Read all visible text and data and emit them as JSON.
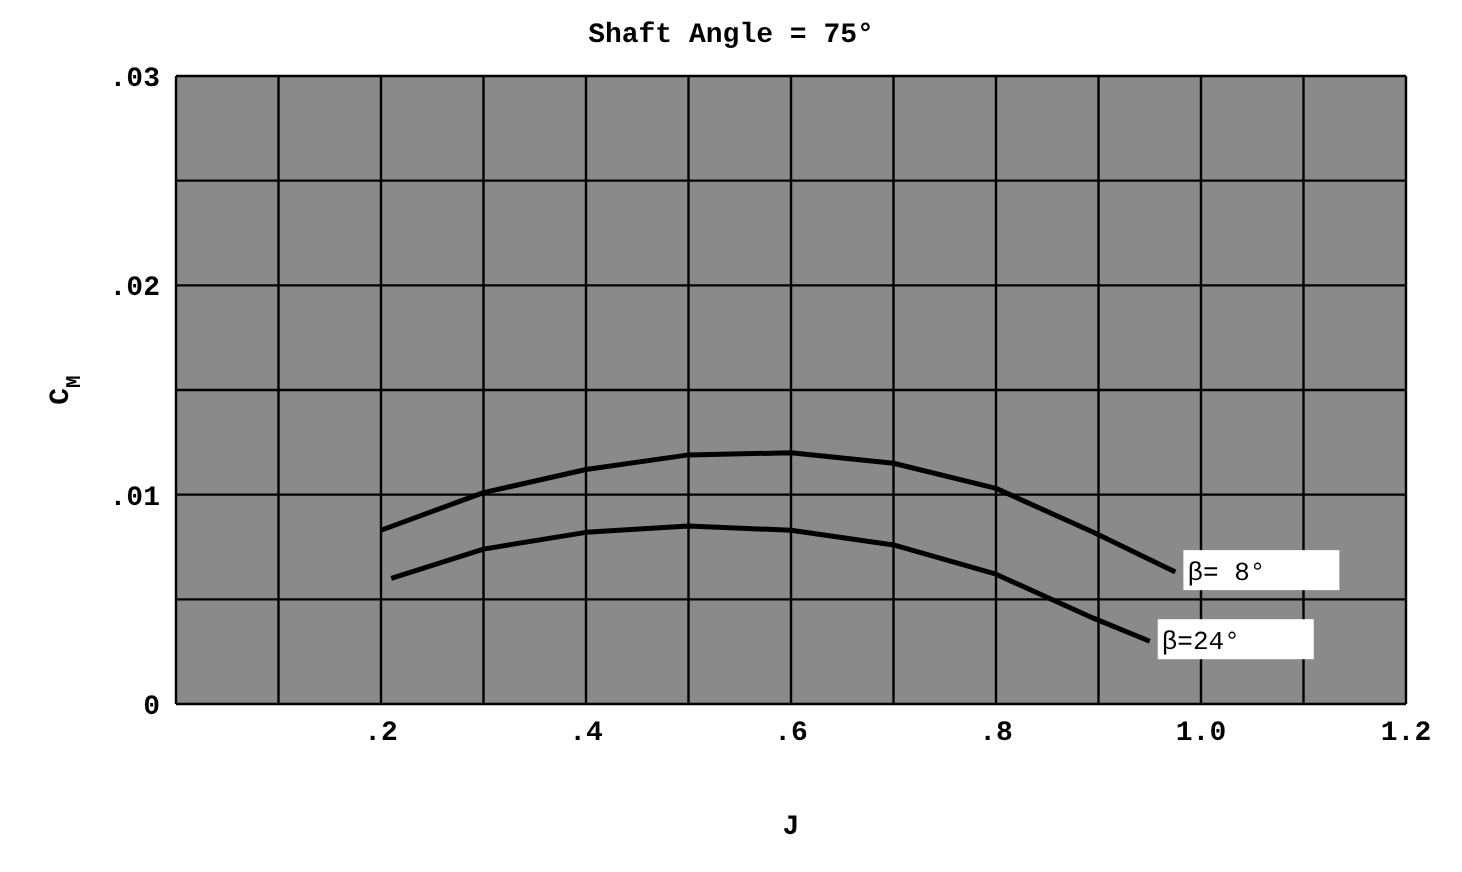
{
  "chart_data": {
    "type": "line",
    "title": "Shaft Angle = 75°",
    "xlabel": "J",
    "ylabel": "C$_{M}$",
    "xlim": [
      0,
      1.2
    ],
    "xticks": [
      {
        "value": 0,
        "label": null
      },
      {
        "value": 0.1,
        "label": null
      },
      {
        "value": 0.2,
        "label": ".2"
      },
      {
        "value": 0.3,
        "label": null
      },
      {
        "value": 0.4,
        "label": ".4"
      },
      {
        "value": 0.5,
        "label": null
      },
      {
        "value": 0.6,
        "label": ".6"
      },
      {
        "value": 0.7,
        "label": null
      },
      {
        "value": 0.8,
        "label": ".8"
      },
      {
        "value": 0.9,
        "label": null
      },
      {
        "value": 1.0,
        "label": "1.0"
      },
      {
        "value": 1.1,
        "label": null
      },
      {
        "value": 1.2,
        "label": "1.2"
      }
    ],
    "ylim": [
      0,
      0.03
    ],
    "yticks": [
      {
        "value": 0,
        "label": "0"
      },
      {
        "value": 0.005,
        "label": null
      },
      {
        "value": 0.01,
        "label": ".01"
      },
      {
        "value": 0.015,
        "label": null
      },
      {
        "value": 0.02,
        "label": ".02"
      },
      {
        "value": 0.025,
        "label": null
      },
      {
        "value": 0.03,
        "label": ".03"
      }
    ],
    "grid": true,
    "marker": "none",
    "line_style": "solid",
    "series": [
      {
        "name": "β= 8°",
        "color": "#000000",
        "x": [
          0.2,
          0.3,
          0.4,
          0.5,
          0.6,
          0.7,
          0.8,
          0.895,
          0.975
        ],
        "values": [
          0.0083,
          0.0101,
          0.0112,
          0.0119,
          0.012,
          0.0115,
          0.0103,
          0.0082,
          0.0063
        ]
      },
      {
        "name": "β=24°",
        "color": "#000000",
        "x": [
          0.21,
          0.3,
          0.4,
          0.5,
          0.6,
          0.7,
          0.8,
          0.895,
          0.95
        ],
        "values": [
          0.006,
          0.0074,
          0.0082,
          0.0085,
          0.0083,
          0.0076,
          0.0062,
          0.0041,
          0.003
        ]
      }
    ]
  }
}
